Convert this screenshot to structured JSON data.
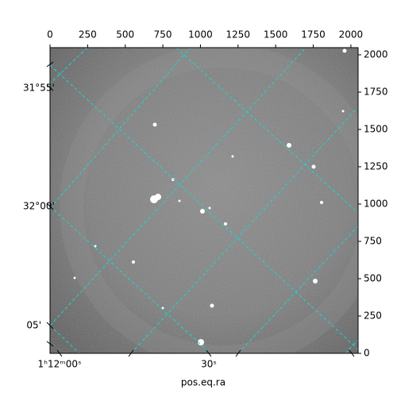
{
  "chart_data": {
    "type": "image",
    "xlabel": "pos.eq.ra",
    "xlim": [
      0,
      2048
    ],
    "xticks": [
      0,
      250,
      500,
      750,
      1000,
      1250,
      1500,
      1750,
      2000
    ],
    "ylim": [
      0,
      2048
    ],
    "yticks": [
      0,
      250,
      500,
      750,
      1000,
      1250,
      1500,
      1750,
      2000
    ],
    "wcs_left_labels": [
      "31°55'",
      "32°00'",
      "05'"
    ],
    "wcs_bottom_labels": [
      "1ʰ12ᵐ00ˢ",
      "30ˢ"
    ]
  }
}
